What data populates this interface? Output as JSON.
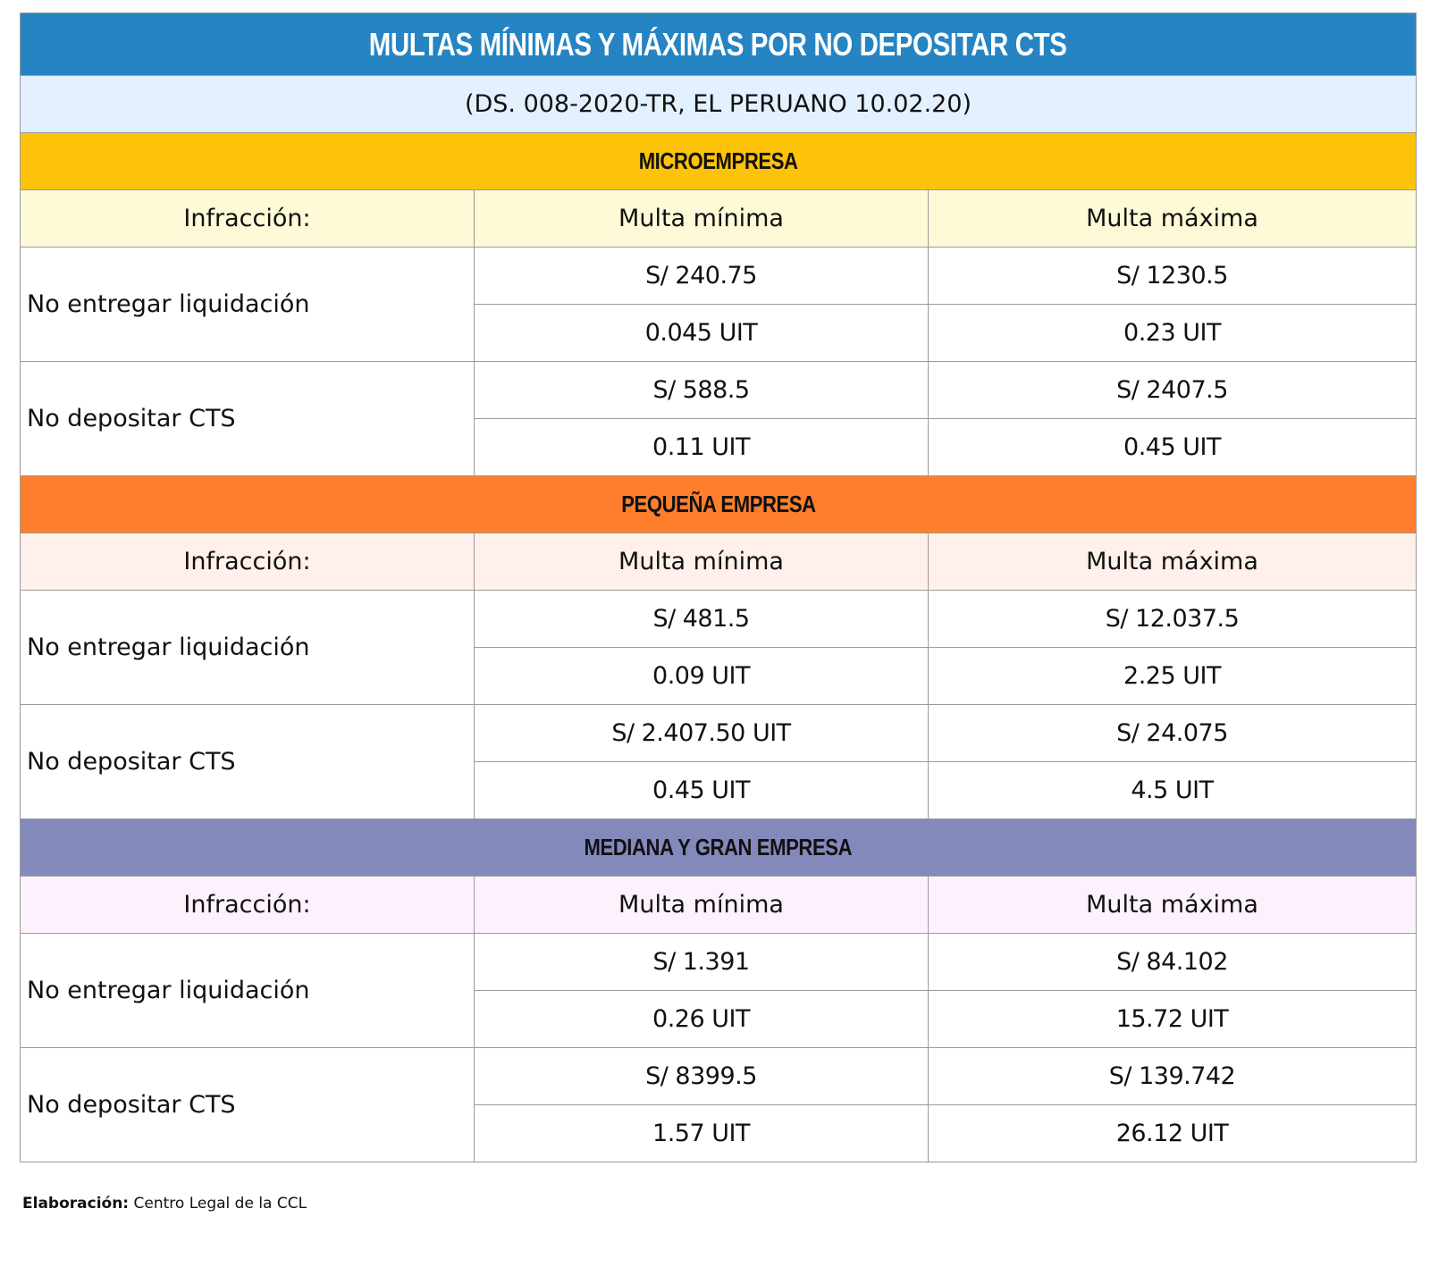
{
  "title": "MULTAS MÍNIMAS Y MÁXIMAS POR NO DEPOSITAR CTS",
  "subtitle": "(DS. 008-2020-TR, EL PERUANO 10.02.20)",
  "colors": {
    "title_bg": "#2684c2",
    "subtitle_bg": "#e2f1fd",
    "micro": "#fdc20a",
    "micro_hdr": "#fefad7",
    "pequena": "#fd7e2c",
    "pequena_hdr": "#fff0ec",
    "mediana": "#8489bc",
    "mediana_hdr": "#fdf1fd"
  },
  "sections": [
    {
      "name": "MICROEMPRESA",
      "header": {
        "infraccion": "Infracción:",
        "min": "Multa mínima",
        "max": "Multa máxima"
      },
      "rows": [
        {
          "label": "No entregar liquidación",
          "min_soles": "S/ 240.75",
          "max_soles": "S/ 1230.5",
          "min_uit": "0.045 UIT",
          "max_uit": "0.23 UIT"
        },
        {
          "label": "No depositar CTS",
          "min_soles": "S/ 588.5",
          "max_soles": "S/ 2407.5",
          "min_uit": "0.11 UIT",
          "max_uit": "0.45 UIT"
        }
      ]
    },
    {
      "name": "PEQUEÑA EMPRESA",
      "header": {
        "infraccion": "Infracción:",
        "min": "Multa mínima",
        "max": "Multa máxima"
      },
      "rows": [
        {
          "label": "No entregar liquidación",
          "min_soles": "S/ 481.5",
          "max_soles": "S/ 12.037.5",
          "min_uit": "0.09 UIT",
          "max_uit": "2.25 UIT"
        },
        {
          "label": "No depositar CTS",
          "min_soles": "S/ 2.407.50 UIT",
          "max_soles": "S/ 24.075",
          "min_uit": "0.45 UIT",
          "max_uit": "4.5 UIT"
        }
      ]
    },
    {
      "name": "MEDIANA Y GRAN EMPRESA",
      "header": {
        "infraccion": "Infracción:",
        "min": "Multa mínima",
        "max": "Multa máxima"
      },
      "rows": [
        {
          "label": "No entregar liquidación",
          "min_soles": "S/ 1.391",
          "max_soles": "S/ 84.102",
          "min_uit": "0.26 UIT",
          "max_uit": "15.72 UIT"
        },
        {
          "label": "No depositar CTS",
          "min_soles": "S/ 8399.5",
          "max_soles": "S/ 139.742",
          "min_uit": "1.57 UIT",
          "max_uit": "26.12 UIT"
        }
      ]
    }
  ],
  "footer": {
    "label": "Elaboración:",
    "text": " Centro Legal de la CCL"
  }
}
